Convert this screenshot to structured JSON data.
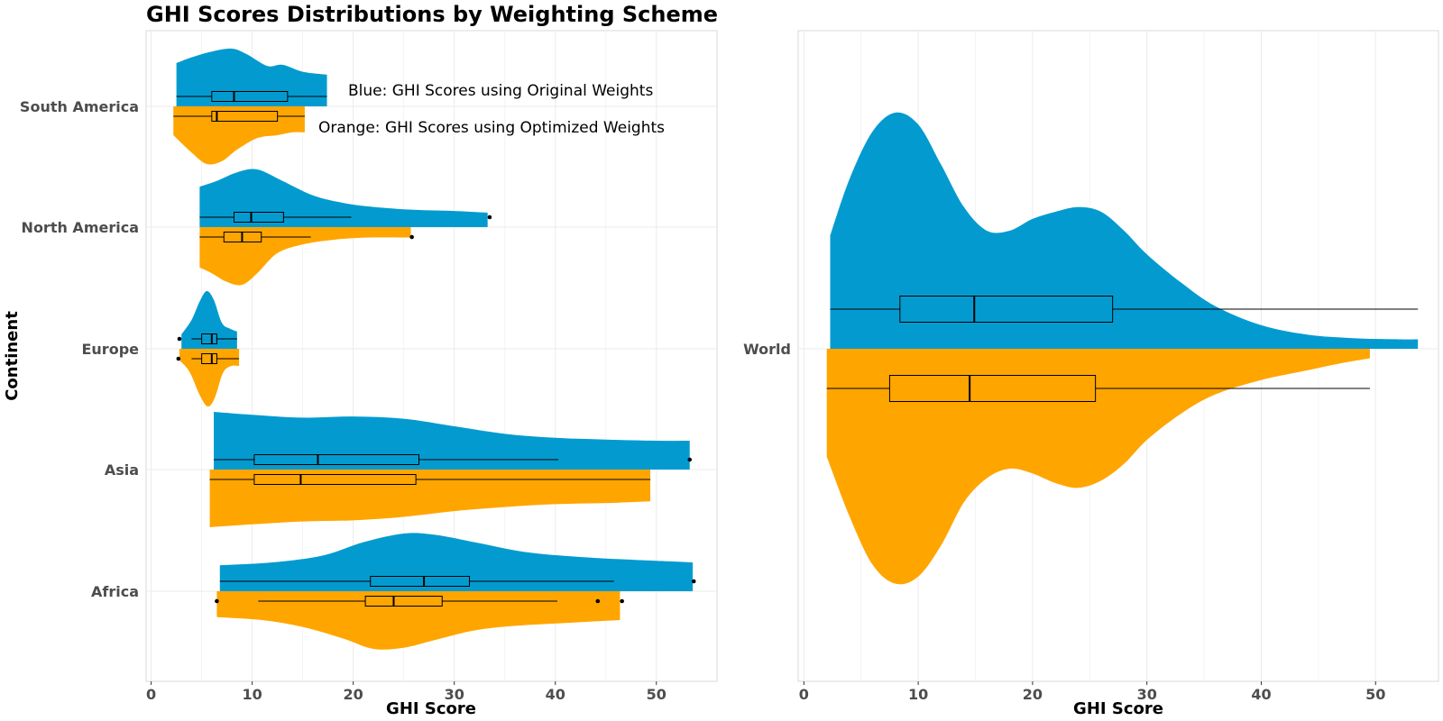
{
  "title": "GHI Scores Distributions by Weighting Scheme",
  "annotations": {
    "blue": "Blue: GHI Scores using Original Weights",
    "orange": "Orange: GHI Scores using Optimized Weights"
  },
  "colors": {
    "original": "#039BCF",
    "optimized": "#FFA500",
    "grid": "#ebebeb",
    "panel_border": "#d9d9d9"
  },
  "chart_data": [
    {
      "type": "raincloud-violin-box",
      "panel": "left",
      "xlabel": "GHI Score",
      "ylabel": "Continent",
      "xlim": [
        -0.5,
        56
      ],
      "xticks": [
        0,
        10,
        20,
        30,
        40,
        50
      ],
      "categories": [
        "South America",
        "North America",
        "Europe",
        "Asia",
        "Africa"
      ],
      "series": [
        {
          "key": "original",
          "groups": {
            "South America": {
              "min": 2.5,
              "q1": 6,
              "median": 8.2,
              "q3": 13.5,
              "max": 17.4,
              "outliers": [],
              "density_x": [
                2.5,
                4,
                6,
                8,
                9.5,
                11.5,
                13,
                15,
                17.4
              ],
              "density": [
                0.75,
                0.85,
                0.95,
                1.0,
                0.9,
                0.7,
                0.72,
                0.6,
                0.55
              ]
            },
            "North America": {
              "min": 4.8,
              "q1": 8.2,
              "median": 9.9,
              "q3": 13.1,
              "max": 19.8,
              "outliers": [
                33.5
              ],
              "density_x": [
                4.8,
                6.5,
                8.5,
                10.5,
                13,
                16,
                19,
                22,
                26,
                30,
                33.3
              ],
              "density": [
                0.7,
                0.8,
                0.95,
                1.0,
                0.8,
                0.55,
                0.42,
                0.35,
                0.3,
                0.28,
                0.25
              ]
            },
            "Europe": {
              "min": 4.0,
              "q1": 5.0,
              "median": 6.0,
              "q3": 6.5,
              "max": 8.5,
              "outliers": [
                2.8
              ],
              "density_x": [
                3.0,
                4.0,
                4.8,
                5.5,
                6.2,
                7.0,
                7.8,
                8.5
              ],
              "density": [
                0.25,
                0.5,
                0.82,
                1.0,
                0.85,
                0.45,
                0.35,
                0.3
              ]
            },
            "Asia": {
              "min": 6.2,
              "q1": 10.2,
              "median": 16.5,
              "q3": 26.5,
              "max": 40.3,
              "outliers": [
                53.3
              ],
              "density_x": [
                6.2,
                10,
                15,
                20,
                25,
                30,
                35,
                40,
                45,
                50,
                53.3
              ],
              "density": [
                1.0,
                0.95,
                0.9,
                0.92,
                0.88,
                0.75,
                0.62,
                0.55,
                0.52,
                0.5,
                0.5
              ]
            },
            "Africa": {
              "min": 6.8,
              "q1": 21.7,
              "median": 27,
              "q3": 31.5,
              "max": 45.8,
              "outliers": [
                53.7
              ],
              "density_x": [
                6.8,
                12,
                17,
                21,
                25,
                28,
                32,
                37,
                42,
                47,
                53.6
              ],
              "density": [
                0.45,
                0.5,
                0.62,
                0.85,
                1.0,
                0.98,
                0.85,
                0.68,
                0.6,
                0.55,
                0.5
              ]
            }
          }
        },
        {
          "key": "optimized",
          "groups": {
            "South America": {
              "min": 2.2,
              "q1": 6.0,
              "median": 6.5,
              "q3": 12.5,
              "max": 15.2,
              "outliers": [],
              "density_x": [
                2.2,
                4,
                5.5,
                7,
                8.5,
                10.5,
                12.5,
                14,
                15.2
              ],
              "density": [
                0.5,
                0.8,
                1.0,
                0.95,
                0.75,
                0.55,
                0.5,
                0.45,
                0.45
              ]
            },
            "North America": {
              "min": 4.8,
              "q1": 7.2,
              "median": 9.0,
              "q3": 10.9,
              "max": 15.8,
              "outliers": [
                25.8
              ],
              "density_x": [
                4.8,
                6,
                7.5,
                9,
                10.5,
                12.5,
                15,
                18,
                21.5,
                25.7
              ],
              "density": [
                0.7,
                0.8,
                0.95,
                1.0,
                0.8,
                0.45,
                0.3,
                0.22,
                0.18,
                0.18
              ]
            },
            "Europe": {
              "min": 4.0,
              "q1": 5.0,
              "median": 6.0,
              "q3": 6.5,
              "max": 8.7,
              "outliers": [
                2.7
              ],
              "density_x": [
                2.8,
                3.8,
                4.8,
                5.6,
                6.3,
                7.1,
                7.9,
                8.7
              ],
              "density": [
                0.2,
                0.4,
                0.8,
                1.0,
                0.85,
                0.42,
                0.3,
                0.3
              ]
            },
            "Asia": {
              "min": 5.8,
              "q1": 10.2,
              "median": 14.8,
              "q3": 26.2,
              "max": 49.4,
              "outliers": [],
              "density_x": [
                5.8,
                10,
                15,
                20,
                25,
                30,
                35,
                40,
                45,
                49.4
              ],
              "density": [
                1.0,
                0.95,
                0.9,
                0.88,
                0.82,
                0.72,
                0.65,
                0.6,
                0.58,
                0.55
              ]
            },
            "Africa": {
              "min": 10.6,
              "q1": 21.2,
              "median": 24,
              "q3": 28.8,
              "max": 40.2,
              "outliers": [
                6.5,
                44.2,
                46.6
              ],
              "density_x": [
                6.5,
                11,
                15,
                19,
                22,
                25,
                28,
                32,
                36,
                41,
                46.4
              ],
              "density": [
                0.45,
                0.5,
                0.62,
                0.82,
                1.0,
                0.98,
                0.85,
                0.68,
                0.6,
                0.55,
                0.5
              ]
            }
          }
        }
      ]
    },
    {
      "type": "raincloud-violin-box",
      "panel": "right",
      "xlabel": "GHI Score",
      "xlim": [
        -0.5,
        55.5
      ],
      "xticks": [
        0,
        10,
        20,
        30,
        40,
        50
      ],
      "categories": [
        "World"
      ],
      "series": [
        {
          "key": "original",
          "groups": {
            "World": {
              "min": 2.3,
              "q1": 8.4,
              "median": 14.9,
              "q3": 27.0,
              "max": 53.7,
              "outliers": [],
              "density_x": [
                2.3,
                4,
                6,
                8,
                10,
                12,
                14,
                16,
                18,
                20,
                22,
                24,
                26,
                28,
                30,
                33,
                36,
                40,
                44,
                48,
                52,
                53.7
              ],
              "density": [
                0.48,
                0.72,
                0.92,
                1.0,
                0.95,
                0.78,
                0.6,
                0.5,
                0.5,
                0.55,
                0.58,
                0.6,
                0.58,
                0.5,
                0.4,
                0.28,
                0.18,
                0.1,
                0.06,
                0.045,
                0.04,
                0.04
              ]
            }
          }
        },
        {
          "key": "optimized",
          "groups": {
            "World": {
              "min": 2.0,
              "q1": 7.5,
              "median": 14.5,
              "q3": 25.5,
              "max": 49.5,
              "outliers": [],
              "density_x": [
                2.0,
                4,
                6,
                8,
                10,
                12,
                14,
                16,
                18,
                20,
                22,
                24,
                26,
                28,
                30,
                33,
                36,
                40,
                44,
                47,
                49.5
              ],
              "density": [
                0.45,
                0.7,
                0.9,
                0.98,
                0.95,
                0.82,
                0.64,
                0.54,
                0.5,
                0.52,
                0.56,
                0.58,
                0.55,
                0.48,
                0.38,
                0.27,
                0.19,
                0.13,
                0.09,
                0.06,
                0.04
              ]
            }
          }
        }
      ]
    }
  ]
}
